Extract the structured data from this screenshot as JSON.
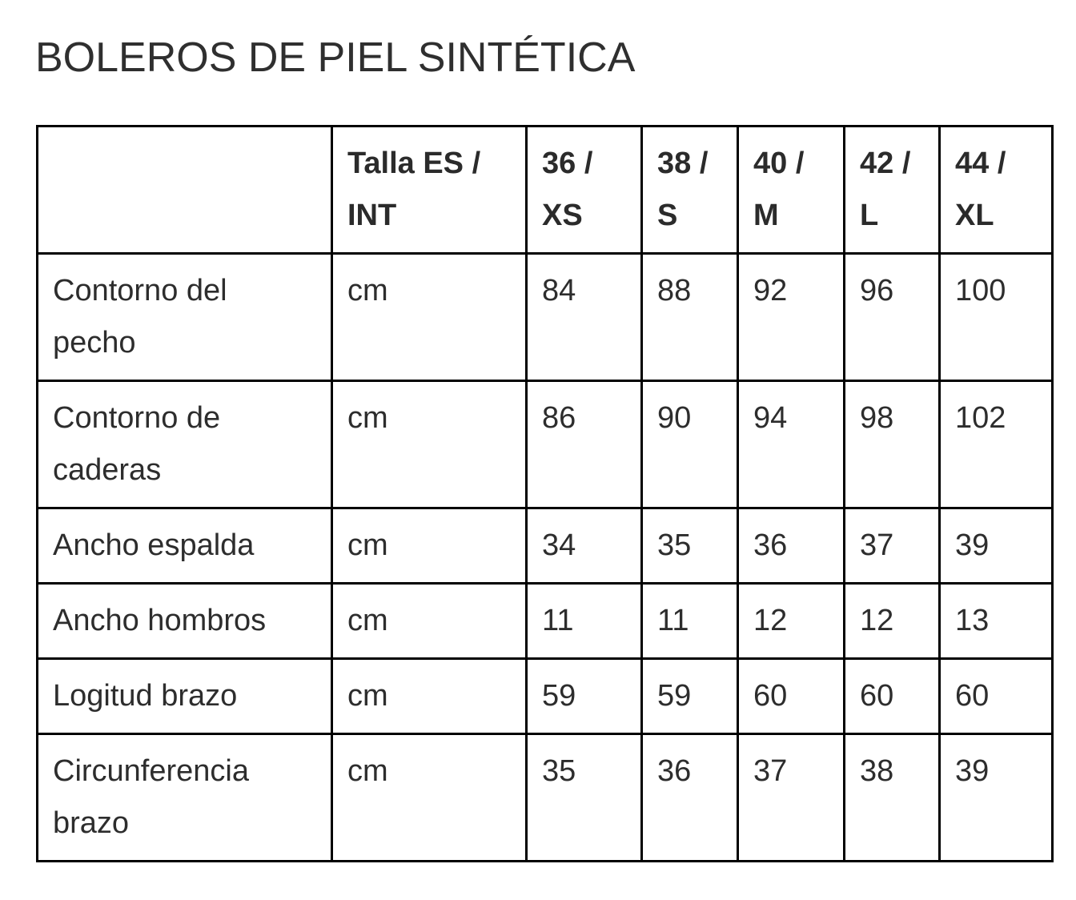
{
  "page": {
    "title": "BOLEROS DE PIEL SINTÉTICA"
  },
  "table": {
    "headers": [
      "",
      "Talla ES / INT",
      "36 / XS",
      "38 / S",
      "40 / M",
      "42 / L",
      "44 / XL"
    ],
    "rows": [
      {
        "label": "Contorno del pecho",
        "unit": "cm",
        "values": [
          "84",
          "88",
          "92",
          "96",
          "100"
        ]
      },
      {
        "label": "Contorno de caderas",
        "unit": "cm",
        "values": [
          "86",
          "90",
          "94",
          "98",
          "102"
        ]
      },
      {
        "label": "Ancho espalda",
        "unit": "cm",
        "values": [
          "34",
          "35",
          "36",
          "37",
          "39"
        ]
      },
      {
        "label": "Ancho hombros",
        "unit": "cm",
        "values": [
          "11",
          "11",
          "12",
          "12",
          "13"
        ]
      },
      {
        "label": "Logitud brazo",
        "unit": "cm",
        "values": [
          "59",
          "59",
          "60",
          "60",
          "60"
        ]
      },
      {
        "label": "Circunferencia brazo",
        "unit": "cm",
        "values": [
          "35",
          "36",
          "37",
          "38",
          "39"
        ]
      }
    ]
  },
  "colors": {
    "text": "#2d2d2d",
    "border": "#000000",
    "bottom_bar": "#c1c1c1"
  }
}
